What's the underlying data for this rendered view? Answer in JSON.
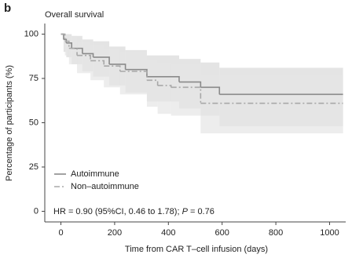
{
  "panel_label": "b",
  "chart_data": {
    "type": "step",
    "title": "Overall survival",
    "x_label": "Time from CAR T–cell infusion (days)",
    "y_label": "Percentage of participants (%)",
    "xlim": [
      -60,
      1060
    ],
    "ylim": [
      -6,
      106
    ],
    "xticks": [
      0,
      200,
      400,
      600,
      800,
      1000
    ],
    "yticks": [
      0,
      25,
      50,
      75,
      100
    ],
    "grid": false,
    "legend": "lower left",
    "annotation": [
      "HR = 0.90 (95%CI, 0.46 to 1.78); ",
      "P",
      " = 0.76"
    ],
    "series": [
      {
        "name": "Autoimmune",
        "color": "#8a8a8a",
        "dash": "solid",
        "ci_color": "#d9d9d9",
        "x": [
          0,
          10,
          20,
          40,
          80,
          120,
          180,
          240,
          320,
          440,
          520,
          590,
          1050
        ],
        "values": [
          100,
          97,
          95,
          92,
          89,
          87,
          83,
          80,
          76,
          73,
          70,
          66,
          66
        ],
        "ci_upper": [
          100,
          100,
          100,
          99,
          97,
          96,
          93,
          91,
          88,
          86,
          84,
          81,
          81
        ],
        "ci_lower": [
          100,
          90,
          87,
          83,
          79,
          76,
          71,
          67,
          62,
          58,
          54,
          48,
          48
        ]
      },
      {
        "name": "Non–autoimmune",
        "color": "#a8a8a8",
        "dash": "dashdot",
        "ci_color": "#e6e6e6",
        "x": [
          0,
          15,
          30,
          60,
          110,
          160,
          220,
          320,
          360,
          410,
          520,
          1050
        ],
        "values": [
          100,
          96,
          92,
          88,
          85,
          82,
          79,
          74,
          71,
          70,
          61,
          61
        ],
        "ci_upper": [
          100,
          100,
          99,
          96,
          94,
          92,
          90,
          86,
          84,
          83,
          77,
          77
        ],
        "ci_lower": [
          100,
          88,
          83,
          78,
          74,
          70,
          66,
          59,
          55,
          54,
          44,
          44
        ]
      }
    ]
  }
}
